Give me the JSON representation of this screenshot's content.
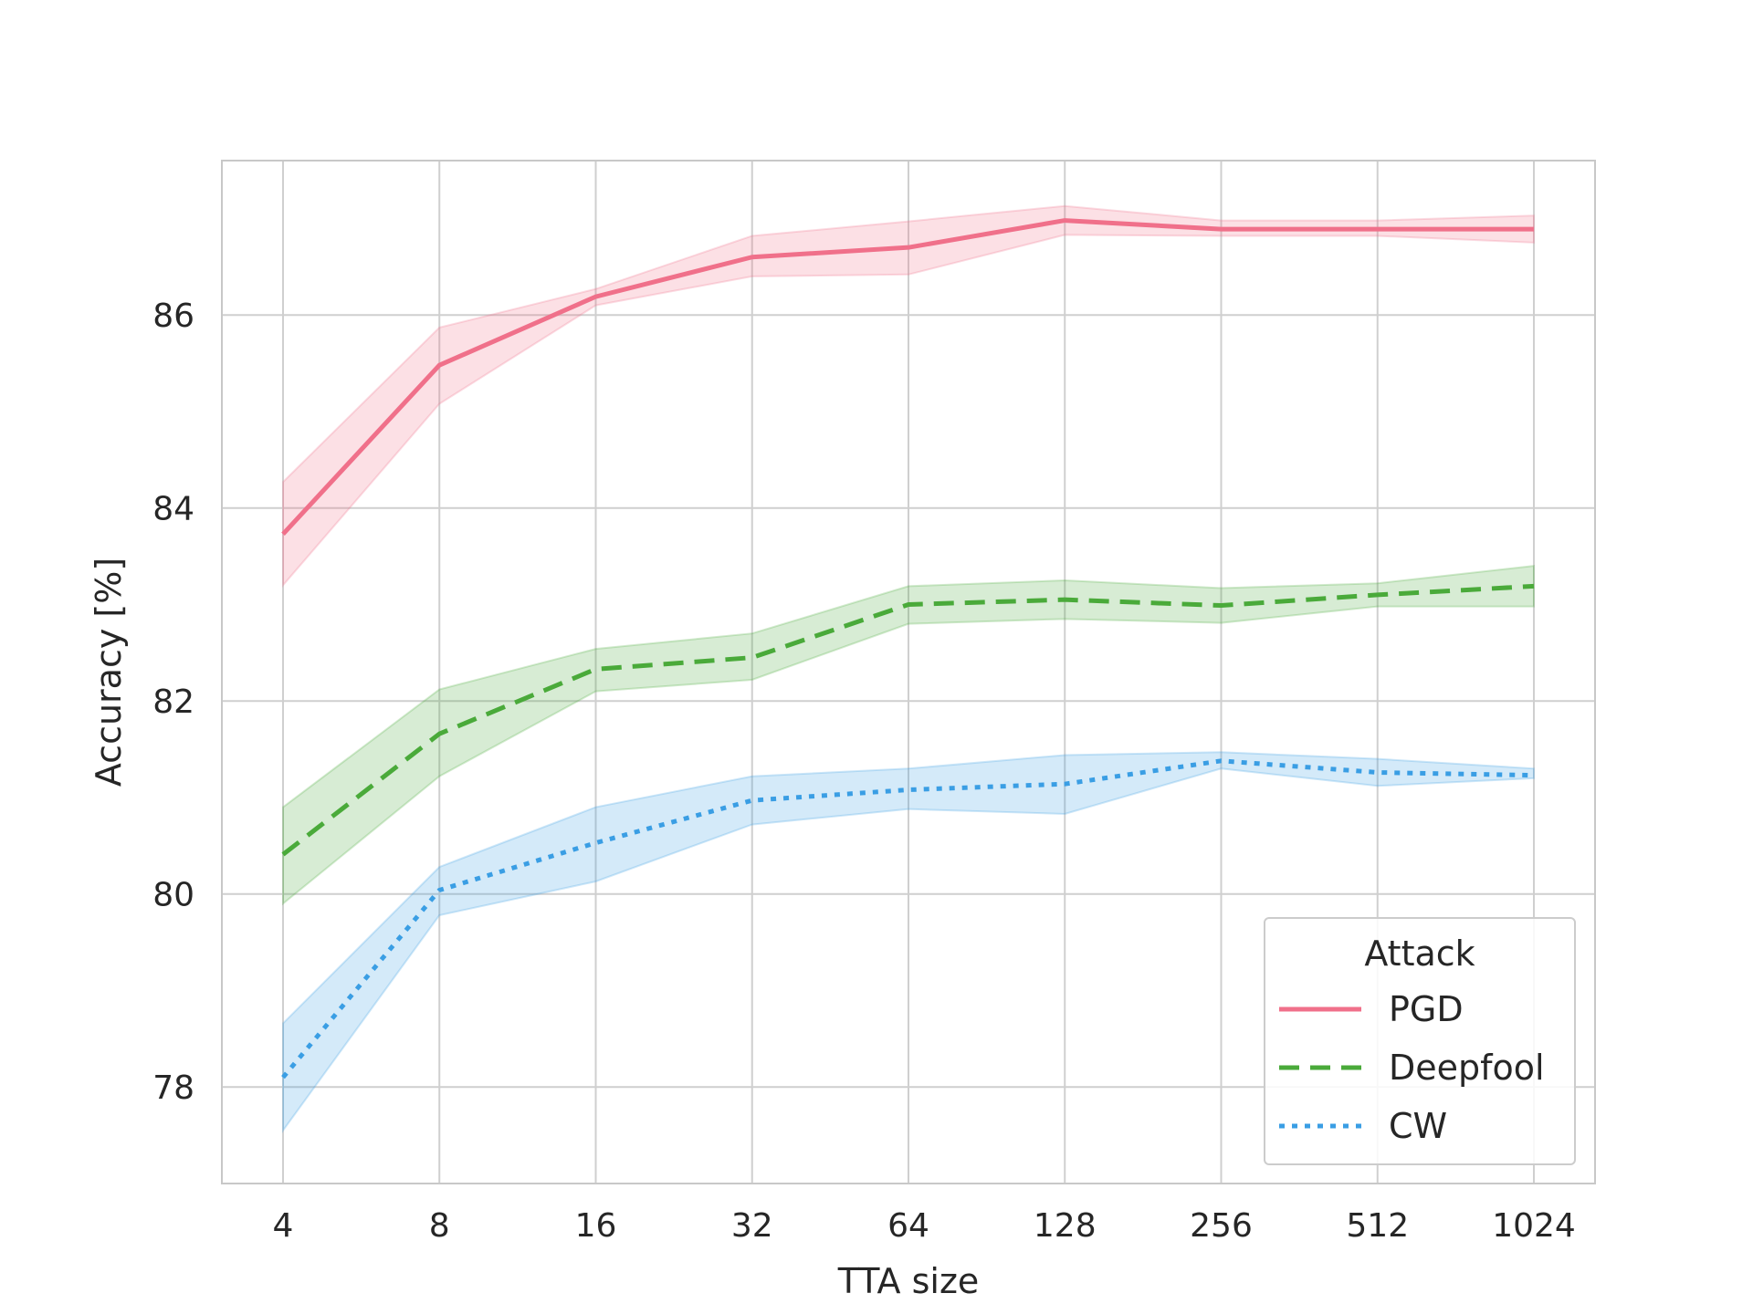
{
  "chart_data": {
    "type": "line",
    "title": "",
    "xlabel": "TTA size",
    "ylabel": "Accuracy [%]",
    "x": [
      4,
      8,
      16,
      32,
      64,
      128,
      256,
      512,
      1024
    ],
    "x_ticks": [
      "4",
      "8",
      "16",
      "32",
      "64",
      "128",
      "256",
      "512",
      "1024"
    ],
    "x_scale": "log2",
    "ylim": [
      77.0,
      87.6
    ],
    "y_ticks": [
      78,
      80,
      82,
      84,
      86
    ],
    "y_tick_labels": [
      "78",
      "80",
      "82",
      "84",
      "86"
    ],
    "grid": true,
    "legend": {
      "title": "Attack",
      "placement": "lower-right"
    },
    "series": [
      {
        "name": "PGD",
        "color": "#f0708a",
        "dash": "solid",
        "values": [
          83.73,
          85.48,
          86.19,
          86.6,
          86.7,
          86.98,
          86.89,
          86.89,
          86.89
        ],
        "lower": [
          83.2,
          85.08,
          86.1,
          86.4,
          86.42,
          86.83,
          86.82,
          86.82,
          86.75
        ],
        "upper": [
          84.27,
          85.87,
          86.27,
          86.82,
          86.97,
          87.13,
          86.98,
          86.98,
          87.03
        ]
      },
      {
        "name": "Deepfool",
        "color": "#4aaa3a",
        "dash": "dashed",
        "values": [
          80.41,
          81.66,
          82.33,
          82.45,
          83.0,
          83.05,
          82.99,
          83.1,
          83.19
        ],
        "lower": [
          79.9,
          81.22,
          82.1,
          82.22,
          82.8,
          82.85,
          82.81,
          82.98,
          82.98
        ],
        "upper": [
          80.9,
          82.12,
          82.54,
          82.7,
          83.19,
          83.25,
          83.17,
          83.22,
          83.4
        ]
      },
      {
        "name": "CW",
        "color": "#3a9ee4",
        "dash": "dotted",
        "values": [
          78.1,
          80.04,
          80.53,
          80.97,
          81.08,
          81.14,
          81.38,
          81.26,
          81.23
        ],
        "lower": [
          77.55,
          79.78,
          80.13,
          80.72,
          80.88,
          80.83,
          81.3,
          81.12,
          81.2
        ],
        "upper": [
          78.66,
          80.28,
          80.9,
          81.22,
          81.3,
          81.44,
          81.47,
          81.4,
          81.3
        ]
      }
    ]
  }
}
